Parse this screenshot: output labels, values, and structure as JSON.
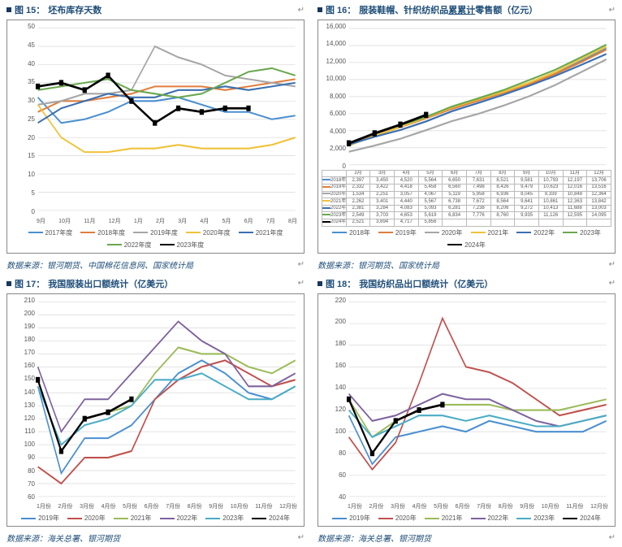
{
  "colors": {
    "title": "#1f4e79",
    "border": "#888888",
    "grid": "#d9d9d9",
    "axis_text": "#555555"
  },
  "figures": {
    "f15": {
      "label": "图 15：",
      "title": "坯布库存天数",
      "source": "数据来源：银河期货、中国棉花信息网、国家统计局",
      "type": "line",
      "ylim": [
        0,
        50
      ],
      "ytick_step": 5,
      "x_labels": [
        "9月",
        "10月",
        "11月",
        "12月",
        "1月",
        "2月",
        "3月",
        "4月",
        "5月",
        "6月",
        "7月",
        "8月"
      ],
      "series": [
        {
          "name": "2017年度",
          "color": "#4a8fd0",
          "data": [
            31,
            24,
            25,
            27,
            30,
            30,
            31,
            29,
            27,
            27,
            25,
            26
          ]
        },
        {
          "name": "2018年度",
          "color": "#e07e3c",
          "data": [
            27,
            30,
            30,
            31,
            32,
            34,
            34,
            34,
            33,
            34,
            35,
            36
          ]
        },
        {
          "name": "2019年度",
          "color": "#a6a6a6",
          "data": [
            29,
            30,
            32,
            32,
            33,
            45,
            42,
            40,
            37,
            36,
            35,
            34
          ]
        },
        {
          "name": "2020年度",
          "color": "#f0c23a",
          "data": [
            29,
            20,
            16,
            16,
            17,
            17,
            18,
            17,
            17,
            17,
            18,
            20
          ]
        },
        {
          "name": "2021年度",
          "color": "#3a6fb0",
          "data": [
            24,
            28,
            30,
            32,
            31,
            31,
            33,
            33,
            34,
            33,
            34,
            35
          ]
        },
        {
          "name": "2022年度",
          "color": "#6aa84f",
          "data": [
            33,
            34,
            35,
            36,
            33,
            32,
            31,
            32,
            35,
            38,
            39,
            37
          ]
        },
        {
          "name": "2023年度",
          "color": "#000000",
          "data": [
            34,
            35,
            33,
            37,
            30,
            24,
            28,
            27,
            28,
            28,
            null,
            null
          ],
          "markers": true
        }
      ]
    },
    "f16": {
      "label": "图 16：",
      "title_pre": "服装鞋帽、针织纺织品",
      "title_ul": "累累计",
      "title_post": "零售额（亿元）",
      "source": "数据来源：银河期货、国家统计局",
      "type": "line",
      "ylim": [
        0,
        16000
      ],
      "ytick_step": 2000,
      "x_labels": [
        "2月",
        "3月",
        "4月",
        "5月",
        "6月",
        "7月",
        "8月",
        "9月",
        "10月",
        "11月",
        "12月"
      ],
      "series": [
        {
          "name": "2018年",
          "color": "#4a8fd0",
          "data": [
            2397,
            3450,
            4520,
            5564,
            6650,
            7631,
            8521,
            9581,
            10793,
            12197,
            13706
          ]
        },
        {
          "name": "2019年",
          "color": "#e07e3c",
          "data": [
            2332,
            3422,
            4418,
            5458,
            6560,
            7498,
            8426,
            9479,
            10623,
            12016,
            13516
          ]
        },
        {
          "name": "2020年",
          "color": "#a6a6a6",
          "data": [
            1534,
            2251,
            3057,
            4067,
            5119,
            5958,
            6936,
            8045,
            9339,
            10848,
            12364
          ]
        },
        {
          "name": "2021年",
          "color": "#f0c23a",
          "data": [
            2262,
            3401,
            4440,
            5567,
            6738,
            7672,
            8564,
            9641,
            10861,
            12363,
            13842
          ]
        },
        {
          "name": "2022年",
          "color": "#3a6fb0",
          "data": [
            2381,
            3284,
            4083,
            5093,
            6281,
            7238,
            8206,
            9272,
            10413,
            11688,
            13003
          ]
        },
        {
          "name": "2023年",
          "color": "#6aa84f",
          "data": [
            2549,
            3703,
            4653,
            5619,
            6834,
            7776,
            8760,
            9935,
            11126,
            12595,
            14095
          ]
        },
        {
          "name": "2024年",
          "color": "#000000",
          "data": [
            2521,
            3694,
            4717,
            5856,
            null,
            null,
            null,
            null,
            null,
            null,
            null
          ],
          "markers": true
        }
      ]
    },
    "f17": {
      "label": "图 17：",
      "title": "我国服装出口额统计（亿美元）",
      "source": "数据来源：海关总署、银河期货",
      "type": "line",
      "ylim": [
        60,
        210
      ],
      "ytick_step": 10,
      "x_labels": [
        "1月份",
        "2月份",
        "3月份",
        "4月份",
        "5月份",
        "6月份",
        "7月份",
        "8月份",
        "9月份",
        "10月份",
        "11月份",
        "12月份"
      ],
      "series": [
        {
          "name": "2019年",
          "color": "#4a8fd0",
          "data": [
            145,
            78,
            105,
            105,
            115,
            135,
            155,
            165,
            155,
            140,
            135,
            145
          ]
        },
        {
          "name": "2020年",
          "color": "#c0504d",
          "data": [
            83,
            70,
            90,
            90,
            95,
            135,
            150,
            160,
            165,
            155,
            145,
            150
          ]
        },
        {
          "name": "2021年",
          "color": "#9bbb59",
          "data": [
            150,
            95,
            120,
            125,
            130,
            155,
            175,
            170,
            170,
            160,
            155,
            165
          ]
        },
        {
          "name": "2022年",
          "color": "#7e629e",
          "data": [
            160,
            110,
            135,
            135,
            155,
            175,
            195,
            180,
            170,
            145,
            145,
            155
          ]
        },
        {
          "name": "2023年",
          "color": "#4bacc6",
          "data": [
            145,
            100,
            115,
            120,
            130,
            150,
            150,
            155,
            145,
            135,
            135,
            145
          ]
        },
        {
          "name": "2024年",
          "color": "#000000",
          "data": [
            150,
            95,
            120,
            125,
            135,
            null,
            null,
            null,
            null,
            null,
            null,
            null
          ],
          "markers": true
        }
      ]
    },
    "f18": {
      "label": "图 18：",
      "title": "我国纺织品出口额统计（亿美元）",
      "source": "数据来源：海关总署、银河期货",
      "type": "line",
      "ylim": [
        40,
        220
      ],
      "ytick_step": 20,
      "x_labels": [
        "1月份",
        "2月份",
        "3月份",
        "4月份",
        "5月份",
        "6月份",
        "7月份",
        "8月份",
        "9月份",
        "10月份",
        "11月份",
        "12月份"
      ],
      "series": [
        {
          "name": "2019年",
          "color": "#4a8fd0",
          "data": [
            115,
            70,
            95,
            100,
            105,
            100,
            110,
            105,
            100,
            100,
            100,
            110
          ]
        },
        {
          "name": "2020年",
          "color": "#c0504d",
          "data": [
            95,
            65,
            90,
            145,
            205,
            160,
            155,
            145,
            130,
            115,
            120,
            125
          ]
        },
        {
          "name": "2021年",
          "color": "#9bbb59",
          "data": [
            130,
            95,
            110,
            120,
            125,
            125,
            125,
            120,
            120,
            120,
            125,
            130
          ]
        },
        {
          "name": "2022年",
          "color": "#7e629e",
          "data": [
            135,
            110,
            115,
            125,
            135,
            130,
            130,
            120,
            110,
            105,
            110,
            115
          ]
        },
        {
          "name": "2023年",
          "color": "#4bacc6",
          "data": [
            120,
            95,
            105,
            115,
            115,
            110,
            115,
            110,
            105,
            105,
            110,
            115
          ]
        },
        {
          "name": "2024年",
          "color": "#000000",
          "data": [
            130,
            80,
            110,
            120,
            125,
            null,
            null,
            null,
            null,
            null,
            null,
            null
          ],
          "markers": true
        }
      ]
    }
  }
}
